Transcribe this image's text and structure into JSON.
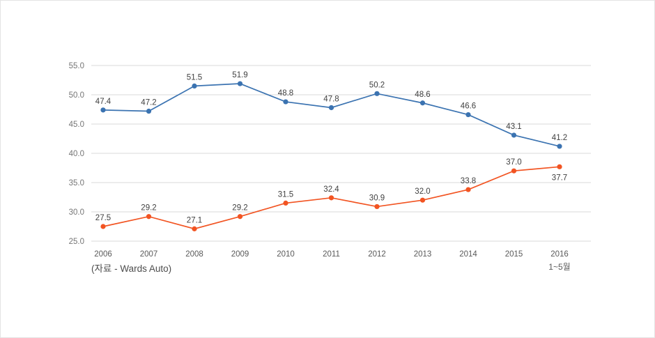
{
  "chart_data": {
    "type": "line",
    "categories": [
      "2006",
      "2007",
      "2008",
      "2009",
      "2010",
      "2011",
      "2012",
      "2013",
      "2014",
      "2015",
      "2016"
    ],
    "x_sub_label": {
      "index": 10,
      "text": "1~5월"
    },
    "series": [
      {
        "name": "series-1-blue",
        "color": "#3b73b1",
        "values": [
          47.4,
          47.2,
          51.5,
          51.9,
          48.8,
          47.8,
          50.2,
          48.6,
          46.6,
          43.1,
          41.2
        ],
        "label_below_indices": []
      },
      {
        "name": "series-2-orange",
        "color": "#f25422",
        "values": [
          27.5,
          29.2,
          27.1,
          29.2,
          31.5,
          32.4,
          30.9,
          32.0,
          33.8,
          37.0,
          37.7
        ],
        "label_below_indices": [
          10
        ]
      }
    ],
    "ylim": [
      25,
      55
    ],
    "ytick_step": 5,
    "ytick_labels": [
      "25.0",
      "30.0",
      "35.0",
      "40.0",
      "45.0",
      "50.0",
      "55.0"
    ],
    "grid": true,
    "legend": "none",
    "title": "",
    "xlabel": "",
    "ylabel": "",
    "source_note": "(자료 - Wards Auto)"
  },
  "colors": {
    "gridline": "#d9d9d9",
    "tick_text": "#757575",
    "year_text": "#595959",
    "data_label_text": "#404040",
    "card_border": "#e3e3e3",
    "background": "#ffffff"
  }
}
